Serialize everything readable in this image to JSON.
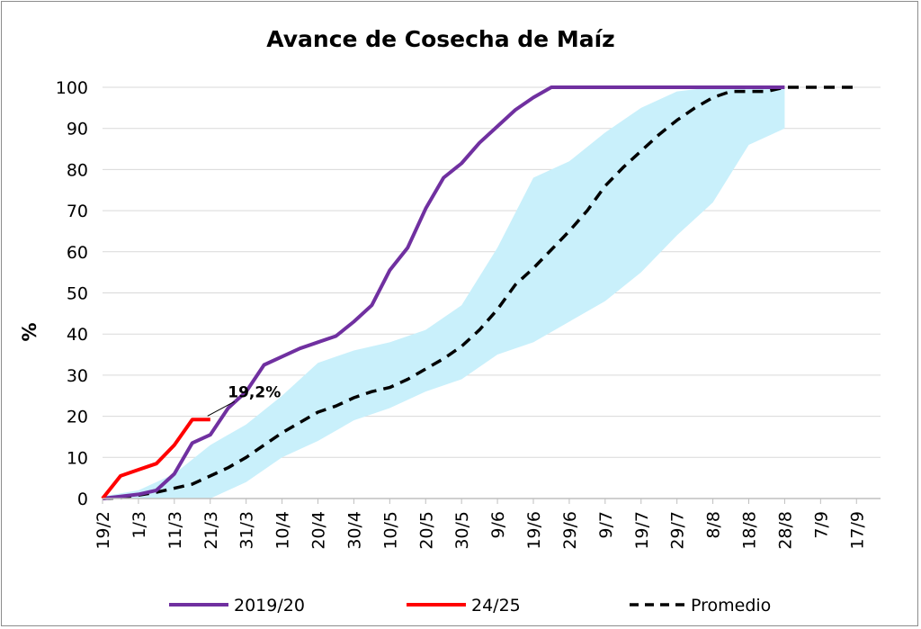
{
  "chart_data": {
    "type": "line",
    "title": "Avance de Cosecha de Maíz",
    "ylabel": "%",
    "xlabel": "",
    "ylim": [
      0,
      100
    ],
    "yticks": [
      0,
      10,
      20,
      30,
      40,
      50,
      60,
      70,
      80,
      90,
      100
    ],
    "categories": [
      "19/2",
      "1/3",
      "11/3",
      "21/3",
      "31/3",
      "10/4",
      "20/4",
      "30/4",
      "10/5",
      "20/5",
      "30/5",
      "9/6",
      "19/6",
      "29/6",
      "9/7",
      "19/7",
      "29/7",
      "8/8",
      "18/8",
      "28/8",
      "7/9",
      "17/9"
    ],
    "grid": "horizontal",
    "legend_position": "bottom",
    "band": {
      "color": "#c9f0fb",
      "upper": [
        0.5,
        2,
        6,
        13,
        18,
        25,
        33,
        36,
        38,
        41,
        47,
        61,
        78,
        82,
        89,
        95,
        99,
        100,
        100,
        100,
        null,
        null
      ],
      "lower": [
        0,
        0,
        0,
        0,
        4,
        10,
        14,
        19,
        22,
        26,
        29,
        35,
        38,
        43,
        48,
        55,
        64,
        72,
        86,
        90,
        null,
        null
      ]
    },
    "series": [
      {
        "name": "2019/20",
        "color": "#7030a0",
        "style": "solid",
        "x": [
          0,
          0.5,
          1,
          1.5,
          2,
          2.5,
          3,
          3.5,
          4,
          4.5,
          5,
          5.5,
          6,
          6.5,
          7,
          7.5,
          8,
          8.5,
          9,
          9.5,
          10,
          10.5,
          11,
          11.5,
          12,
          12.5,
          13,
          13.5,
          14,
          14.5,
          15,
          15.5,
          16,
          16.5,
          17,
          17.5,
          18,
          18.5,
          19
        ],
        "values": [
          0,
          0.5,
          1,
          2,
          6,
          13.5,
          15.5,
          22,
          26,
          32.5,
          34.5,
          36.5,
          38,
          39.5,
          43,
          47,
          55.5,
          61,
          70.5,
          78,
          81.5,
          86.5,
          90.5,
          94.5,
          97.5,
          100,
          100,
          100,
          100,
          100,
          100,
          100,
          100,
          100,
          100,
          100,
          100,
          100,
          100
        ]
      },
      {
        "name": "24/25",
        "color": "#ff0000",
        "style": "solid",
        "x": [
          0,
          0.5,
          1,
          1.5,
          2,
          2.5,
          3
        ],
        "values": [
          0,
          5.5,
          7,
          8.5,
          13,
          19.2,
          19.2
        ]
      },
      {
        "name": "Promedio",
        "color": "#000000",
        "style": "dashed",
        "x": [
          0,
          0.5,
          1,
          1.5,
          2,
          2.5,
          3,
          3.5,
          4,
          4.5,
          5,
          5.5,
          6,
          6.5,
          7,
          7.5,
          8,
          8.5,
          9,
          9.5,
          10,
          10.5,
          11,
          11.5,
          12,
          12.5,
          13,
          13.5,
          14,
          14.5,
          15,
          15.5,
          16,
          16.5,
          17,
          17.5,
          18,
          18.5,
          19,
          19.5,
          20,
          20.5,
          21
        ],
        "values": [
          0,
          0.2,
          0.8,
          1.5,
          2.5,
          3.5,
          5.5,
          7.5,
          10,
          13,
          16,
          18.5,
          21,
          22.5,
          24.5,
          26,
          27,
          29,
          31.5,
          34,
          37,
          41,
          46,
          52,
          56,
          60.5,
          65,
          70,
          76,
          80.5,
          84.5,
          88.5,
          92,
          95,
          97.5,
          99,
          99,
          99,
          100,
          100,
          100,
          100,
          100
        ]
      }
    ],
    "annotations": [
      {
        "text": "19,2%",
        "x": 3,
        "y": 19.2
      }
    ]
  }
}
